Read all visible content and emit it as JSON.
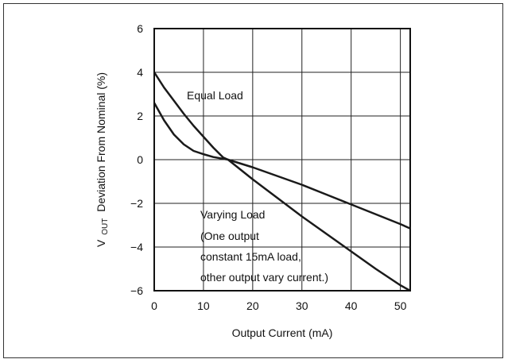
{
  "chart_data": {
    "type": "line",
    "xlabel": "Output Current (mA)",
    "ylabel_parts": [
      "V",
      "OUT",
      "Deviation From Nominal (%)"
    ],
    "xlim": [
      0,
      52
    ],
    "ylim": [
      -6,
      6
    ],
    "x_ticks": [
      0,
      10,
      20,
      30,
      40,
      50
    ],
    "y_ticks": [
      6,
      4,
      2,
      0,
      -2,
      -4,
      -6
    ],
    "y_tick_labels": [
      "6",
      "4",
      "2",
      "0",
      "−2",
      "−4",
      "−6"
    ],
    "grid": true,
    "series": [
      {
        "name": "Equal Load",
        "x": [
          0,
          2,
          4,
          6,
          8,
          10,
          12,
          14,
          15,
          20,
          25,
          30,
          35,
          40,
          45,
          50,
          52
        ],
        "y": [
          4.0,
          3.3,
          2.7,
          2.1,
          1.55,
          1.05,
          0.55,
          0.1,
          0.0,
          -0.9,
          -1.75,
          -2.6,
          -3.4,
          -4.2,
          -5.0,
          -5.75,
          -6.0
        ]
      },
      {
        "name": "Varying Load",
        "x": [
          0,
          2,
          4,
          6,
          8,
          10,
          12,
          15,
          20,
          25,
          30,
          35,
          40,
          45,
          50,
          52
        ],
        "y": [
          2.6,
          1.8,
          1.15,
          0.7,
          0.4,
          0.25,
          0.12,
          0.0,
          -0.35,
          -0.75,
          -1.15,
          -1.6,
          -2.05,
          -2.5,
          -2.95,
          -3.15
        ]
      }
    ],
    "annotations": {
      "equal_load": "Equal Load",
      "varying_load_lines": [
        "Varying Load",
        "(One output",
        "constant 15mA load,",
        "other output vary current.)"
      ]
    },
    "line_color": "#1a1a1a"
  }
}
